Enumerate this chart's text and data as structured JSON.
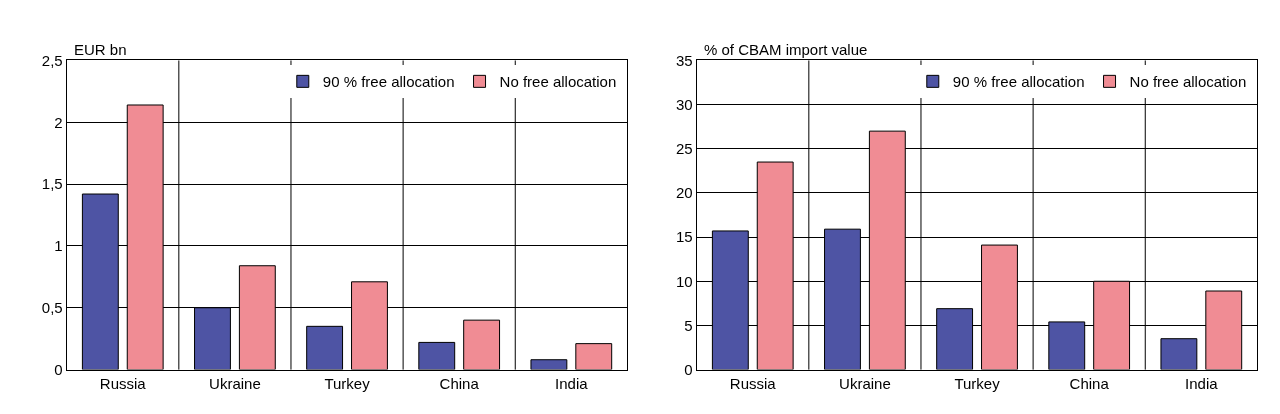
{
  "chart_data": [
    {
      "type": "bar",
      "ylabel": "EUR bn",
      "categories": [
        "Russia",
        "Ukraine",
        "Turkey",
        "China",
        "India"
      ],
      "series": [
        {
          "name": "90 % free allocation",
          "color": "#4e54a4",
          "values": [
            1.42,
            0.5,
            0.35,
            0.22,
            0.08
          ]
        },
        {
          "name": "No free allocation",
          "color": "#f08c94",
          "values": [
            2.14,
            0.84,
            0.71,
            0.4,
            0.21
          ]
        }
      ],
      "ylim": [
        0,
        2.5
      ],
      "yticks": [
        0,
        {
          "value": 0.5,
          "label": "0,5"
        },
        1,
        {
          "value": 1.5,
          "label": "1,5"
        },
        2,
        {
          "value": 2.5,
          "label": "2,5"
        }
      ],
      "grid": true,
      "legend": "top right"
    },
    {
      "type": "bar",
      "ylabel": "% of CBAM import value",
      "categories": [
        "Russia",
        "Ukraine",
        "Turkey",
        "China",
        "India"
      ],
      "series": [
        {
          "name": "90 % free allocation",
          "color": "#4e54a4",
          "values": [
            15.7,
            15.9,
            6.9,
            5.4,
            3.5
          ]
        },
        {
          "name": "No free allocation",
          "color": "#f08c94",
          "values": [
            23.5,
            27.0,
            14.1,
            10.0,
            8.9
          ]
        }
      ],
      "ylim": [
        0,
        35
      ],
      "yticks": [
        0,
        5,
        10,
        15,
        20,
        25,
        30,
        35
      ],
      "grid": true,
      "legend": "top right"
    }
  ]
}
